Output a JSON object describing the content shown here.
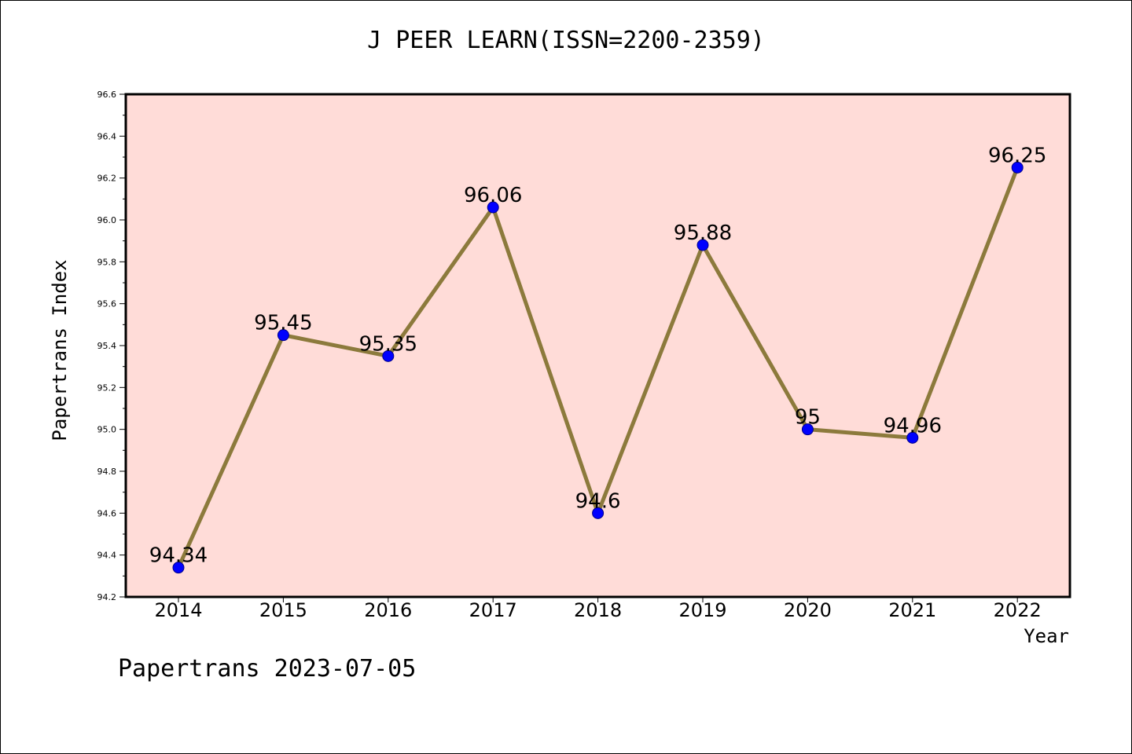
{
  "chart_data": {
    "type": "line",
    "title": "J PEER LEARN(ISSN=2200-2359)",
    "xlabel": "Year",
    "ylabel": "Papertrans Index",
    "categories": [
      "2014",
      "2015",
      "2016",
      "2017",
      "2018",
      "2019",
      "2020",
      "2021",
      "2022"
    ],
    "values": [
      94.34,
      95.45,
      95.35,
      96.06,
      94.6,
      95.88,
      95.0,
      94.96,
      96.25
    ],
    "data_labels": [
      "94.34",
      "95.45",
      "95.35",
      "96.06",
      "94.6",
      "95.88",
      "95",
      "94.96",
      "96.25"
    ],
    "ylim": [
      94.2,
      96.6
    ],
    "yticks": [
      "94.2",
      "94.4",
      "94.6",
      "94.8",
      "95.0",
      "95.2",
      "95.4",
      "95.6",
      "95.8",
      "96.0",
      "96.2",
      "96.4",
      "96.6"
    ],
    "grid": false,
    "legend": "none",
    "colors": {
      "plot_background": "#ffdcd8",
      "line": "#8c7a3c",
      "marker_fill": "#0000ff",
      "marker_edge": "#00008b"
    }
  },
  "footer": {
    "credit": "Papertrans 2023-07-05"
  }
}
